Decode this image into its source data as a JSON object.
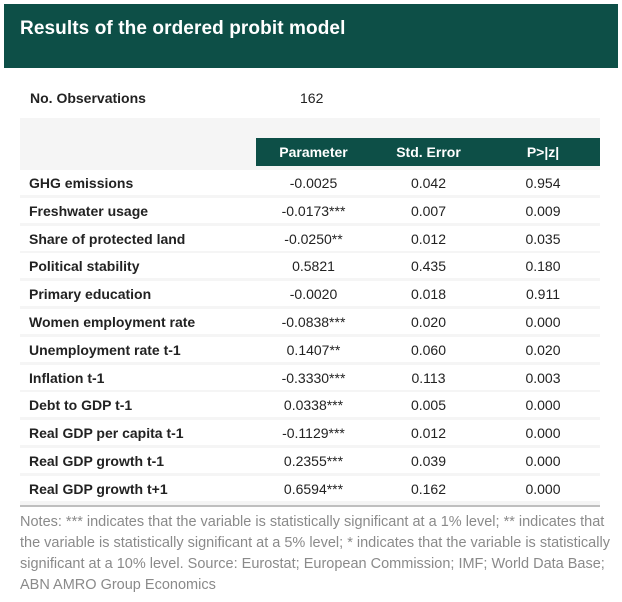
{
  "header": {
    "title": "Results of the ordered probit model"
  },
  "observations": {
    "label": "No. Observations",
    "value": "162"
  },
  "columns": [
    "Parameter",
    "Std. Error",
    "P>|z|"
  ],
  "rows": [
    {
      "label": "GHG emissions",
      "parameter": "-0.0025",
      "std_error": "0.042",
      "p": "0.954"
    },
    {
      "label": "Freshwater usage",
      "parameter": "-0.0173***",
      "std_error": "0.007",
      "p": "0.009"
    },
    {
      "label": "Share of protected land",
      "parameter": "-0.0250**",
      "std_error": "0.012",
      "p": "0.035"
    },
    {
      "label": "Political stability",
      "parameter": "0.5821",
      "std_error": "0.435",
      "p": "0.180"
    },
    {
      "label": "Primary education",
      "parameter": "-0.0020",
      "std_error": "0.018",
      "p": "0.911"
    },
    {
      "label": "Women employment rate",
      "parameter": "-0.0838***",
      "std_error": "0.020",
      "p": "0.000"
    },
    {
      "label": "Unemployment rate t-1",
      "parameter": "0.1407**",
      "std_error": "0.060",
      "p": "0.020"
    },
    {
      "label": "Inflation t-1",
      "parameter": "-0.3330***",
      "std_error": "0.113",
      "p": "0.003"
    },
    {
      "label": "Debt to GDP t-1",
      "parameter": "0.0338***",
      "std_error": "0.005",
      "p": "0.000"
    },
    {
      "label": "Real GDP per capita t-1",
      "parameter": "-0.1129***",
      "std_error": "0.012",
      "p": "0.000"
    },
    {
      "label": "Real GDP growth t-1",
      "parameter": "0.2355***",
      "std_error": "0.039",
      "p": "0.000"
    },
    {
      "label": "Real GDP growth t+1",
      "parameter": "0.6594***",
      "std_error": "0.162",
      "p": "0.000"
    }
  ],
  "notes": "Notes: *** indicates that the variable is statistically significant at a 1% level; ** indicates that the variable is statistically significant at a 5% level; * indicates that the variable is statistically significant at a 10% level. Source: Eurostat; European Commission; IMF; World Data Base; ABN AMRO Group Economics",
  "colors": {
    "header_bg": "#0d4f47",
    "panel_bg": "#f5f5f5",
    "notes_text": "#8a8a8a"
  }
}
